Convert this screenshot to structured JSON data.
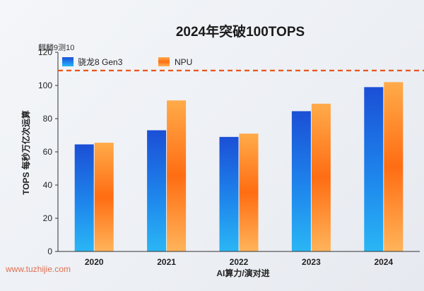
{
  "chart_data": {
    "type": "bar",
    "title": "2024年突破100TOPS",
    "xlabel": "AI算力/演对进",
    "ylabel": "TOPS 每秒万亿次运算",
    "categories": [
      "2020",
      "2021",
      "2022",
      "2023",
      "2024"
    ],
    "series": [
      {
        "name": "骁龙8 Gen3",
        "values": [
          64.5,
          73,
          69,
          84.5,
          99
        ],
        "color": "#1a63d8"
      },
      {
        "name": "NPU",
        "values": [
          65.5,
          91,
          71,
          89,
          102
        ],
        "color": "#ff7a1a"
      }
    ],
    "ylim": [
      0,
      120
    ],
    "yticks": [
      0,
      20,
      40,
      60,
      80,
      100,
      120
    ],
    "reference_line": {
      "value": 109,
      "color": "#e8561e",
      "style": "dashed"
    },
    "annotation": "麒麟9测10",
    "legend_position": "top-left",
    "grid": false
  },
  "watermark": "www.tuzhijie.com"
}
